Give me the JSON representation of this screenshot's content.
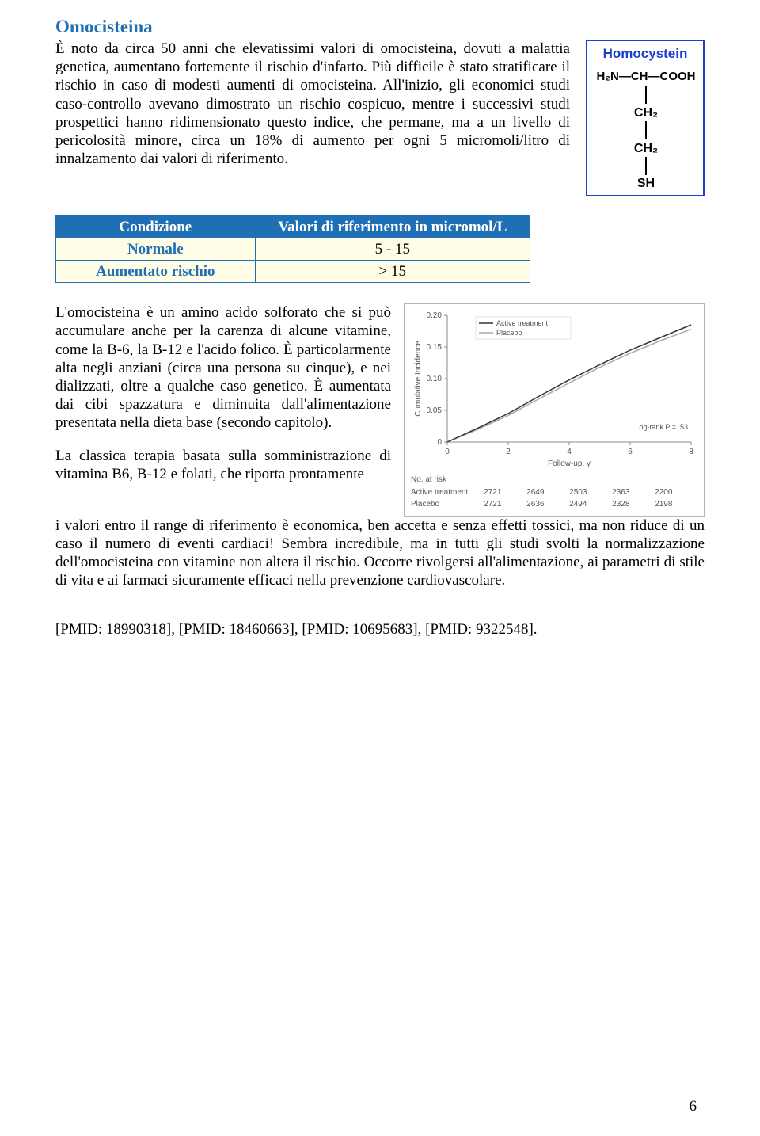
{
  "title": "Omocisteina",
  "title_color": "#1f6fb4",
  "para1": "È noto da circa 50 anni che elevatissimi valori di omocisteina, dovuti a malattia genetica, aumentano fortemente il rischio d'infarto. Più difficile è stato stratificare il rischio in caso di modesti aumenti di omocisteina. All'inizio, gli economici studi caso-controllo avevano dimostrato un rischio cospicuo, mentre i successivi studi prospettici hanno ridimensionato questo indice, che permane, ma a un livello di pericolosità minore, circa un 18% di aumento per ogni 5 micromoli/litro di innalzamento dai valori di riferimento.",
  "formula": {
    "title": "Homocystein",
    "title_color": "#1a3fd1",
    "border_color": "#1a3fd1",
    "lines": [
      "H₂N—CH—COOH",
      "CH₂",
      "CH₂",
      "SH"
    ]
  },
  "table": {
    "header_bg": "#1f6fb4",
    "border_color": "#1f6fb4",
    "cell_bg": "#fffde6",
    "label_color": "#1f6fb4",
    "headers": [
      "Condizione",
      "Valori di riferimento in micromol/L"
    ],
    "rows": [
      {
        "cond": "Normale",
        "val": "5 - 15"
      },
      {
        "cond": "Aumentato rischio",
        "val": "> 15"
      }
    ]
  },
  "para2a": "L'omocisteina è un amino acido solforato che si può accumulare anche per la carenza di alcune vitamine, come la B-6, la B-12 e l'acido folico. È particolarmente alta negli anziani (circa una persona su cinque), e nei dializzati, oltre a qualche caso genetico. È aumentata dai cibi spazzatura e diminuita dall'alimentazione presentata nella dieta base (secondo capitolo).",
  "para2b": "La classica terapia basata sulla somministrazione di vitamina B6, B-12 e folati, che riporta prontamente",
  "para2c": "i valori entro il range di riferimento è economica, ben accetta e senza effetti tossici, ma non riduce di un caso il numero di eventi cardiaci! Sembra incredibile, ma in tutti gli studi svolti la normalizzazione dell'omocisteina con vitamine non altera il rischio. Occorre rivolgersi all'alimentazione, ai parametri di stile di vita e ai farmaci sicuramente efficaci nella prevenzione cardiovascolare.",
  "chart": {
    "ylabel": "Cumulative Incidence",
    "xlabel": "Follow-up, y",
    "yticks": [
      "0",
      "0.05",
      "0.10",
      "0.15",
      "0.20"
    ],
    "xticks": [
      "0",
      "2",
      "4",
      "6",
      "8"
    ],
    "legend": [
      "Active treatment",
      "Placebo"
    ],
    "active_color": "#333333",
    "placebo_color": "#aaaaaa",
    "logrank": "Log-rank P = .53",
    "risk_label": "No. at risk",
    "risk_rows": [
      {
        "label": "Active treatment",
        "vals": [
          "2721",
          "2649",
          "2503",
          "2363",
          "2200"
        ]
      },
      {
        "label": "Placebo",
        "vals": [
          "2721",
          "2636",
          "2494",
          "2328",
          "2198"
        ]
      }
    ],
    "series": {
      "active": [
        [
          0,
          0
        ],
        [
          1,
          0.022
        ],
        [
          2,
          0.045
        ],
        [
          3,
          0.072
        ],
        [
          4,
          0.098
        ],
        [
          5,
          0.122
        ],
        [
          6,
          0.145
        ],
        [
          7,
          0.165
        ],
        [
          8,
          0.185
        ]
      ],
      "placebo": [
        [
          0,
          0
        ],
        [
          1,
          0.02
        ],
        [
          2,
          0.042
        ],
        [
          3,
          0.068
        ],
        [
          4,
          0.093
        ],
        [
          5,
          0.118
        ],
        [
          6,
          0.14
        ],
        [
          7,
          0.16
        ],
        [
          8,
          0.178
        ]
      ]
    }
  },
  "pmid": "[PMID: 18990318], [PMID: 18460663], [PMID: 10695683], [PMID: 9322548].",
  "page_number": "6"
}
